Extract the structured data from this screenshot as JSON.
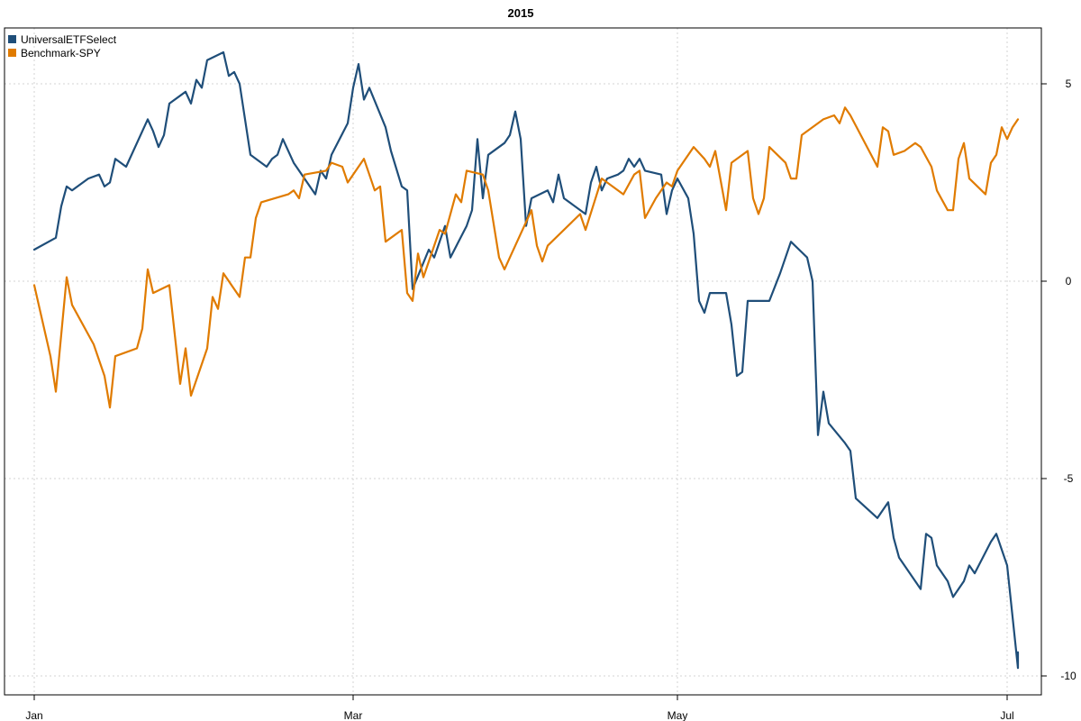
{
  "chart_data": {
    "type": "line",
    "title": "2015",
    "xlabel": "",
    "ylabel": "",
    "x_axis_type": "date",
    "xlim": [
      "2015-01-02",
      "2015-07-03"
    ],
    "ylim": [
      -10.5,
      6.2
    ],
    "grid": true,
    "legend_position": "top-left",
    "x_ticks": [
      {
        "label": "Jan",
        "date": "2015-01-02"
      },
      {
        "label": "Mar",
        "date": "2015-03-02"
      },
      {
        "label": "May",
        "date": "2015-05-01"
      },
      {
        "label": "Jul",
        "date": "2015-07-01"
      }
    ],
    "y_ticks": [
      5,
      0,
      -5,
      -10
    ],
    "y_axis_side": "right",
    "series": [
      {
        "name": "UniversalETFSelect",
        "color": "#1f4e79",
        "points": [
          [
            "2015-01-02",
            0.8
          ],
          [
            "2015-01-06",
            1.1
          ],
          [
            "2015-01-07",
            1.9
          ],
          [
            "2015-01-08",
            2.4
          ],
          [
            "2015-01-09",
            2.3
          ],
          [
            "2015-01-12",
            2.6
          ],
          [
            "2015-01-14",
            2.7
          ],
          [
            "2015-01-15",
            2.4
          ],
          [
            "2015-01-16",
            2.5
          ],
          [
            "2015-01-17",
            3.1
          ],
          [
            "2015-01-19",
            2.9
          ],
          [
            "2015-01-23",
            4.1
          ],
          [
            "2015-01-24",
            3.8
          ],
          [
            "2015-01-25",
            3.4
          ],
          [
            "2015-01-26",
            3.7
          ],
          [
            "2015-01-27",
            4.5
          ],
          [
            "2015-01-30",
            4.8
          ],
          [
            "2015-01-31",
            4.5
          ],
          [
            "2015-02-01",
            5.1
          ],
          [
            "2015-02-02",
            4.9
          ],
          [
            "2015-02-03",
            5.6
          ],
          [
            "2015-02-06",
            5.8
          ],
          [
            "2015-02-07",
            5.2
          ],
          [
            "2015-02-08",
            5.3
          ],
          [
            "2015-02-09",
            5.0
          ],
          [
            "2015-02-11",
            3.2
          ],
          [
            "2015-02-14",
            2.9
          ],
          [
            "2015-02-15",
            3.1
          ],
          [
            "2015-02-16",
            3.2
          ],
          [
            "2015-02-17",
            3.6
          ],
          [
            "2015-02-19",
            3.0
          ],
          [
            "2015-02-23",
            2.2
          ],
          [
            "2015-02-24",
            2.8
          ],
          [
            "2015-02-25",
            2.6
          ],
          [
            "2015-02-26",
            3.2
          ],
          [
            "2015-03-01",
            4.0
          ],
          [
            "2015-03-02",
            4.9
          ],
          [
            "2015-03-03",
            5.5
          ],
          [
            "2015-03-04",
            4.6
          ],
          [
            "2015-03-05",
            4.9
          ],
          [
            "2015-03-08",
            3.9
          ],
          [
            "2015-03-09",
            3.3
          ],
          [
            "2015-03-11",
            2.4
          ],
          [
            "2015-03-12",
            2.3
          ],
          [
            "2015-03-13",
            -0.2
          ],
          [
            "2015-03-16",
            0.8
          ],
          [
            "2015-03-17",
            0.6
          ],
          [
            "2015-03-19",
            1.4
          ],
          [
            "2015-03-20",
            0.6
          ],
          [
            "2015-03-23",
            1.4
          ],
          [
            "2015-03-24",
            1.8
          ],
          [
            "2015-03-25",
            3.6
          ],
          [
            "2015-03-26",
            2.1
          ],
          [
            "2015-03-27",
            3.2
          ],
          [
            "2015-03-30",
            3.5
          ],
          [
            "2015-03-31",
            3.7
          ],
          [
            "2015-04-01",
            4.3
          ],
          [
            "2015-04-02",
            3.6
          ],
          [
            "2015-04-03",
            1.4
          ],
          [
            "2015-04-04",
            2.1
          ],
          [
            "2015-04-07",
            2.3
          ],
          [
            "2015-04-08",
            2.0
          ],
          [
            "2015-04-09",
            2.7
          ],
          [
            "2015-04-10",
            2.1
          ],
          [
            "2015-04-14",
            1.7
          ],
          [
            "2015-04-15",
            2.5
          ],
          [
            "2015-04-16",
            2.9
          ],
          [
            "2015-04-17",
            2.3
          ],
          [
            "2015-04-18",
            2.6
          ],
          [
            "2015-04-20",
            2.7
          ],
          [
            "2015-04-21",
            2.8
          ],
          [
            "2015-04-22",
            3.1
          ],
          [
            "2015-04-23",
            2.9
          ],
          [
            "2015-04-24",
            3.1
          ],
          [
            "2015-04-25",
            2.8
          ],
          [
            "2015-04-28",
            2.7
          ],
          [
            "2015-04-29",
            1.7
          ],
          [
            "2015-04-30",
            2.3
          ],
          [
            "2015-05-01",
            2.6
          ],
          [
            "2015-05-03",
            2.1
          ],
          [
            "2015-05-04",
            1.2
          ],
          [
            "2015-05-05",
            -0.5
          ],
          [
            "2015-05-06",
            -0.8
          ],
          [
            "2015-05-07",
            -0.3
          ],
          [
            "2015-05-09",
            -0.3
          ],
          [
            "2015-05-10",
            -0.3
          ],
          [
            "2015-05-11",
            -1.1
          ],
          [
            "2015-05-12",
            -2.4
          ],
          [
            "2015-05-13",
            -2.3
          ],
          [
            "2015-05-14",
            -0.5
          ],
          [
            "2015-05-18",
            -0.5
          ],
          [
            "2015-05-20",
            0.2
          ],
          [
            "2015-05-22",
            1.0
          ],
          [
            "2015-05-25",
            0.6
          ],
          [
            "2015-05-26",
            0.0
          ],
          [
            "2015-05-27",
            -3.9
          ],
          [
            "2015-05-28",
            -2.8
          ],
          [
            "2015-05-29",
            -3.6
          ],
          [
            "2015-06-01",
            -4.1
          ],
          [
            "2015-06-02",
            -4.3
          ],
          [
            "2015-06-03",
            -5.5
          ],
          [
            "2015-06-07",
            -6.0
          ],
          [
            "2015-06-08",
            -5.8
          ],
          [
            "2015-06-09",
            -5.6
          ],
          [
            "2015-06-10",
            -6.5
          ],
          [
            "2015-06-11",
            -7.0
          ],
          [
            "2015-06-15",
            -7.8
          ],
          [
            "2015-06-16",
            -6.4
          ],
          [
            "2015-06-17",
            -6.5
          ],
          [
            "2015-06-18",
            -7.2
          ],
          [
            "2015-06-20",
            -7.6
          ],
          [
            "2015-06-21",
            -8.0
          ],
          [
            "2015-06-23",
            -7.6
          ],
          [
            "2015-06-24",
            -7.2
          ],
          [
            "2015-06-25",
            -7.4
          ],
          [
            "2015-06-28",
            -6.6
          ],
          [
            "2015-06-29",
            -6.4
          ],
          [
            "2015-07-01",
            -7.2
          ],
          [
            "2015-07-02",
            -8.5
          ],
          [
            "2015-07-03",
            -9.8
          ],
          [
            "2015-07-03",
            -9.4
          ]
        ]
      },
      {
        "name": "Benchmark-SPY",
        "color": "#e07b00",
        "points": [
          [
            "2015-01-02",
            -0.1
          ],
          [
            "2015-01-05",
            -1.9
          ],
          [
            "2015-01-06",
            -2.8
          ],
          [
            "2015-01-08",
            0.1
          ],
          [
            "2015-01-09",
            -0.6
          ],
          [
            "2015-01-13",
            -1.6
          ],
          [
            "2015-01-15",
            -2.4
          ],
          [
            "2015-01-16",
            -3.2
          ],
          [
            "2015-01-17",
            -1.9
          ],
          [
            "2015-01-21",
            -1.7
          ],
          [
            "2015-01-22",
            -1.2
          ],
          [
            "2015-01-23",
            0.3
          ],
          [
            "2015-01-24",
            -0.3
          ],
          [
            "2015-01-27",
            -0.1
          ],
          [
            "2015-01-29",
            -2.6
          ],
          [
            "2015-01-30",
            -1.7
          ],
          [
            "2015-01-31",
            -2.9
          ],
          [
            "2015-02-03",
            -1.7
          ],
          [
            "2015-02-04",
            -0.4
          ],
          [
            "2015-02-05",
            -0.7
          ],
          [
            "2015-02-06",
            0.2
          ],
          [
            "2015-02-07",
            0.0
          ],
          [
            "2015-02-09",
            -0.4
          ],
          [
            "2015-02-10",
            0.6
          ],
          [
            "2015-02-11",
            0.6
          ],
          [
            "2015-02-12",
            1.6
          ],
          [
            "2015-02-13",
            2.0
          ],
          [
            "2015-02-18",
            2.2
          ],
          [
            "2015-02-19",
            2.3
          ],
          [
            "2015-02-20",
            2.1
          ],
          [
            "2015-02-21",
            2.7
          ],
          [
            "2015-02-25",
            2.8
          ],
          [
            "2015-02-26",
            3.0
          ],
          [
            "2015-02-28",
            2.9
          ],
          [
            "2015-03-01",
            2.5
          ],
          [
            "2015-03-04",
            3.1
          ],
          [
            "2015-03-05",
            2.7
          ],
          [
            "2015-03-06",
            2.3
          ],
          [
            "2015-03-07",
            2.4
          ],
          [
            "2015-03-08",
            1.0
          ],
          [
            "2015-03-11",
            1.3
          ],
          [
            "2015-03-12",
            -0.3
          ],
          [
            "2015-03-13",
            -0.5
          ],
          [
            "2015-03-14",
            0.7
          ],
          [
            "2015-03-15",
            0.1
          ],
          [
            "2015-03-18",
            1.3
          ],
          [
            "2015-03-19",
            1.2
          ],
          [
            "2015-03-21",
            2.2
          ],
          [
            "2015-03-22",
            2.0
          ],
          [
            "2015-03-23",
            2.8
          ],
          [
            "2015-03-26",
            2.7
          ],
          [
            "2015-03-27",
            2.3
          ],
          [
            "2015-03-29",
            0.6
          ],
          [
            "2015-03-30",
            0.3
          ],
          [
            "2015-03-31",
            0.6
          ],
          [
            "2015-04-04",
            1.8
          ],
          [
            "2015-04-05",
            0.9
          ],
          [
            "2015-04-06",
            0.5
          ],
          [
            "2015-04-07",
            0.9
          ],
          [
            "2015-04-13",
            1.7
          ],
          [
            "2015-04-14",
            1.3
          ],
          [
            "2015-04-17",
            2.6
          ],
          [
            "2015-04-21",
            2.2
          ],
          [
            "2015-04-23",
            2.7
          ],
          [
            "2015-04-24",
            2.8
          ],
          [
            "2015-04-25",
            1.6
          ],
          [
            "2015-04-27",
            2.1
          ],
          [
            "2015-04-29",
            2.5
          ],
          [
            "2015-04-30",
            2.4
          ],
          [
            "2015-05-01",
            2.8
          ],
          [
            "2015-05-04",
            3.4
          ],
          [
            "2015-05-06",
            3.1
          ],
          [
            "2015-05-07",
            2.9
          ],
          [
            "2015-05-08",
            3.3
          ],
          [
            "2015-05-10",
            1.8
          ],
          [
            "2015-05-11",
            3.0
          ],
          [
            "2015-05-14",
            3.3
          ],
          [
            "2015-05-15",
            2.1
          ],
          [
            "2015-05-16",
            1.7
          ],
          [
            "2015-05-17",
            2.1
          ],
          [
            "2015-05-18",
            3.4
          ],
          [
            "2015-05-21",
            3.0
          ],
          [
            "2015-05-22",
            2.6
          ],
          [
            "2015-05-23",
            2.6
          ],
          [
            "2015-05-24",
            3.7
          ],
          [
            "2015-05-28",
            4.1
          ],
          [
            "2015-05-30",
            4.2
          ],
          [
            "2015-05-31",
            4.0
          ],
          [
            "2015-06-01",
            4.4
          ],
          [
            "2015-06-02",
            4.2
          ],
          [
            "2015-06-07",
            2.9
          ],
          [
            "2015-06-08",
            3.9
          ],
          [
            "2015-06-09",
            3.8
          ],
          [
            "2015-06-10",
            3.2
          ],
          [
            "2015-06-12",
            3.3
          ],
          [
            "2015-06-13",
            3.4
          ],
          [
            "2015-06-14",
            3.5
          ],
          [
            "2015-06-15",
            3.4
          ],
          [
            "2015-06-17",
            2.9
          ],
          [
            "2015-06-18",
            2.3
          ],
          [
            "2015-06-20",
            1.8
          ],
          [
            "2015-06-21",
            1.8
          ],
          [
            "2015-06-22",
            3.1
          ],
          [
            "2015-06-23",
            3.5
          ],
          [
            "2015-06-24",
            2.6
          ],
          [
            "2015-06-27",
            2.2
          ],
          [
            "2015-06-28",
            3.0
          ],
          [
            "2015-06-29",
            3.2
          ],
          [
            "2015-06-30",
            3.9
          ],
          [
            "2015-07-01",
            3.6
          ],
          [
            "2015-07-02",
            3.9
          ],
          [
            "2015-07-03",
            4.1
          ]
        ]
      }
    ]
  }
}
